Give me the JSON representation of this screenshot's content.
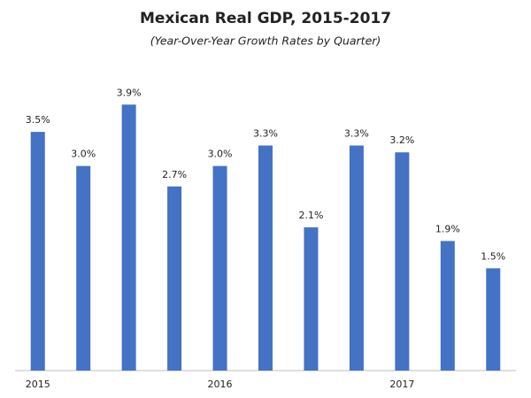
{
  "chart_data": {
    "type": "bar",
    "title": "Mexican Real GDP, 2015-2017",
    "subtitle": "(Year-Over-Year Growth Rates by Quarter)",
    "categories": [
      "2015",
      null,
      null,
      null,
      "2016",
      null,
      null,
      null,
      "2017",
      null,
      null
    ],
    "values": [
      3.5,
      3.0,
      3.9,
      2.7,
      3.0,
      3.3,
      2.1,
      3.3,
      3.2,
      1.9,
      1.5
    ],
    "value_labels": [
      "3.5%",
      "3.0%",
      "3.9%",
      "2.7%",
      "3.0%",
      "3.3%",
      "2.1%",
      "3.3%",
      "3.2%",
      "1.9%",
      "1.5%"
    ],
    "color": "#4472c4",
    "ylim": [
      0,
      4.5
    ]
  }
}
